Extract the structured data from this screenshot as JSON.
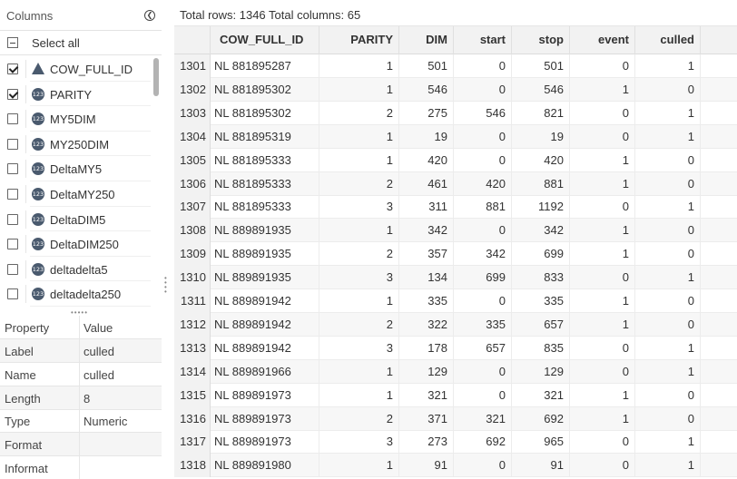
{
  "columns_panel": {
    "title": "Columns",
    "select_all_label": "Select all",
    "items": [
      {
        "name": "COW_FULL_ID",
        "checked": true,
        "type_icon": "char-triangle-icon"
      },
      {
        "name": "PARITY",
        "checked": true,
        "type_icon": "numeric-123-icon"
      },
      {
        "name": "MY5DIM",
        "checked": false,
        "type_icon": "numeric-123-icon"
      },
      {
        "name": "MY250DIM",
        "checked": false,
        "type_icon": "numeric-123-icon"
      },
      {
        "name": "DeltaMY5",
        "checked": false,
        "type_icon": "numeric-123-icon"
      },
      {
        "name": "DeltaMY250",
        "checked": false,
        "type_icon": "numeric-123-icon"
      },
      {
        "name": "DeltaDIM5",
        "checked": false,
        "type_icon": "numeric-123-icon"
      },
      {
        "name": "DeltaDIM250",
        "checked": false,
        "type_icon": "numeric-123-icon"
      },
      {
        "name": "deltadelta5",
        "checked": false,
        "type_icon": "numeric-123-icon"
      },
      {
        "name": "deltadelta250",
        "checked": false,
        "type_icon": "numeric-123-icon"
      }
    ],
    "type_icon_text": "123"
  },
  "properties": {
    "header": {
      "key": "Property",
      "value": "Value"
    },
    "rows": [
      {
        "key": "Label",
        "value": "culled"
      },
      {
        "key": "Name",
        "value": "culled"
      },
      {
        "key": "Length",
        "value": "8"
      },
      {
        "key": "Type",
        "value": "Numeric"
      },
      {
        "key": "Format",
        "value": ""
      },
      {
        "key": "Informat",
        "value": ""
      }
    ]
  },
  "grid": {
    "summary": "Total rows: 1346   Total columns: 65",
    "headers": [
      "COW_FULL_ID",
      "PARITY",
      "DIM",
      "start",
      "stop",
      "event",
      "culled"
    ],
    "rows": [
      [
        "1301",
        "NL 881895287",
        "1",
        "501",
        "0",
        "501",
        "0",
        "1"
      ],
      [
        "1302",
        "NL 881895302",
        "1",
        "546",
        "0",
        "546",
        "1",
        "0"
      ],
      [
        "1303",
        "NL 881895302",
        "2",
        "275",
        "546",
        "821",
        "0",
        "1"
      ],
      [
        "1304",
        "NL 881895319",
        "1",
        "19",
        "0",
        "19",
        "0",
        "1"
      ],
      [
        "1305",
        "NL 881895333",
        "1",
        "420",
        "0",
        "420",
        "1",
        "0"
      ],
      [
        "1306",
        "NL 881895333",
        "2",
        "461",
        "420",
        "881",
        "1",
        "0"
      ],
      [
        "1307",
        "NL 881895333",
        "3",
        "311",
        "881",
        "1192",
        "0",
        "1"
      ],
      [
        "1308",
        "NL 889891935",
        "1",
        "342",
        "0",
        "342",
        "1",
        "0"
      ],
      [
        "1309",
        "NL 889891935",
        "2",
        "357",
        "342",
        "699",
        "1",
        "0"
      ],
      [
        "1310",
        "NL 889891935",
        "3",
        "134",
        "699",
        "833",
        "0",
        "1"
      ],
      [
        "1311",
        "NL 889891942",
        "1",
        "335",
        "0",
        "335",
        "1",
        "0"
      ],
      [
        "1312",
        "NL 889891942",
        "2",
        "322",
        "335",
        "657",
        "1",
        "0"
      ],
      [
        "1313",
        "NL 889891942",
        "3",
        "178",
        "657",
        "835",
        "0",
        "1"
      ],
      [
        "1314",
        "NL 889891966",
        "1",
        "129",
        "0",
        "129",
        "0",
        "1"
      ],
      [
        "1315",
        "NL 889891973",
        "1",
        "321",
        "0",
        "321",
        "1",
        "0"
      ],
      [
        "1316",
        "NL 889891973",
        "2",
        "371",
        "321",
        "692",
        "1",
        "0"
      ],
      [
        "1317",
        "NL 889891973",
        "3",
        "273",
        "692",
        "965",
        "0",
        "1"
      ],
      [
        "1318",
        "NL 889891980",
        "1",
        "91",
        "0",
        "91",
        "0",
        "1"
      ]
    ]
  }
}
